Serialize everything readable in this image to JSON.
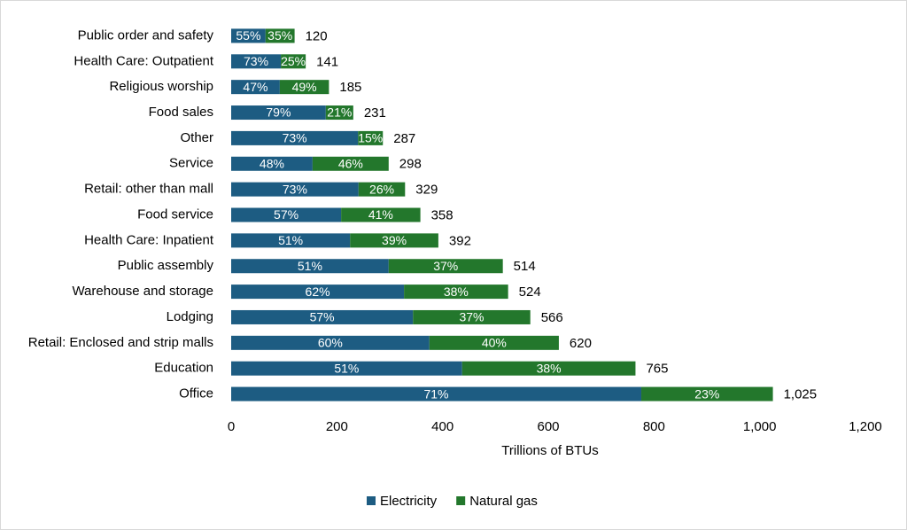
{
  "chart_data": {
    "type": "stacked-bar-horizontal",
    "xlabel": "Trillions of BTUs",
    "categories": [
      "Public order and safety",
      "Health Care: Outpatient",
      "Religious worship",
      "Food sales",
      "Other",
      "Service",
      "Retail: other than mall",
      "Food service",
      "Health Care: Inpatient",
      "Public assembly",
      "Warehouse and storage",
      "Lodging",
      "Retail: Enclosed and strip malls",
      "Education",
      "Office"
    ],
    "series": [
      {
        "name": "Electricity",
        "color": "#1d5c82",
        "values": [
          65,
          94,
          92,
          179,
          240,
          154,
          241,
          208,
          225,
          298,
          327,
          344,
          375,
          437,
          776
        ],
        "share_labels": [
          "55%",
          "73%",
          "47%",
          "79%",
          "73%",
          "48%",
          "73%",
          "57%",
          "51%",
          "51%",
          "62%",
          "57%",
          "60%",
          "51%",
          "71%"
        ]
      },
      {
        "name": "Natural gas",
        "color": "#23772c",
        "values": [
          55,
          47,
          93,
          52,
          47,
          144,
          88,
          150,
          167,
          216,
          197,
          222,
          245,
          328,
          249
        ],
        "share_labels": [
          "35%",
          "25%",
          "49%",
          "21%",
          "15%",
          "46%",
          "26%",
          "41%",
          "39%",
          "37%",
          "38%",
          "37%",
          "40%",
          "38%",
          "23%"
        ]
      }
    ],
    "totals": [
      120,
      141,
      185,
      231,
      287,
      298,
      329,
      358,
      392,
      514,
      524,
      566,
      620,
      765,
      {
        "value": 1025,
        "label": "1,025"
      }
    ],
    "xlim": [
      0,
      1200
    ],
    "xticks": [
      0,
      200,
      400,
      600,
      800,
      {
        "value": 1000,
        "label": "1,000"
      },
      {
        "value": 1200,
        "label": "1,200"
      }
    ],
    "grid": false,
    "legend": "bottom"
  }
}
